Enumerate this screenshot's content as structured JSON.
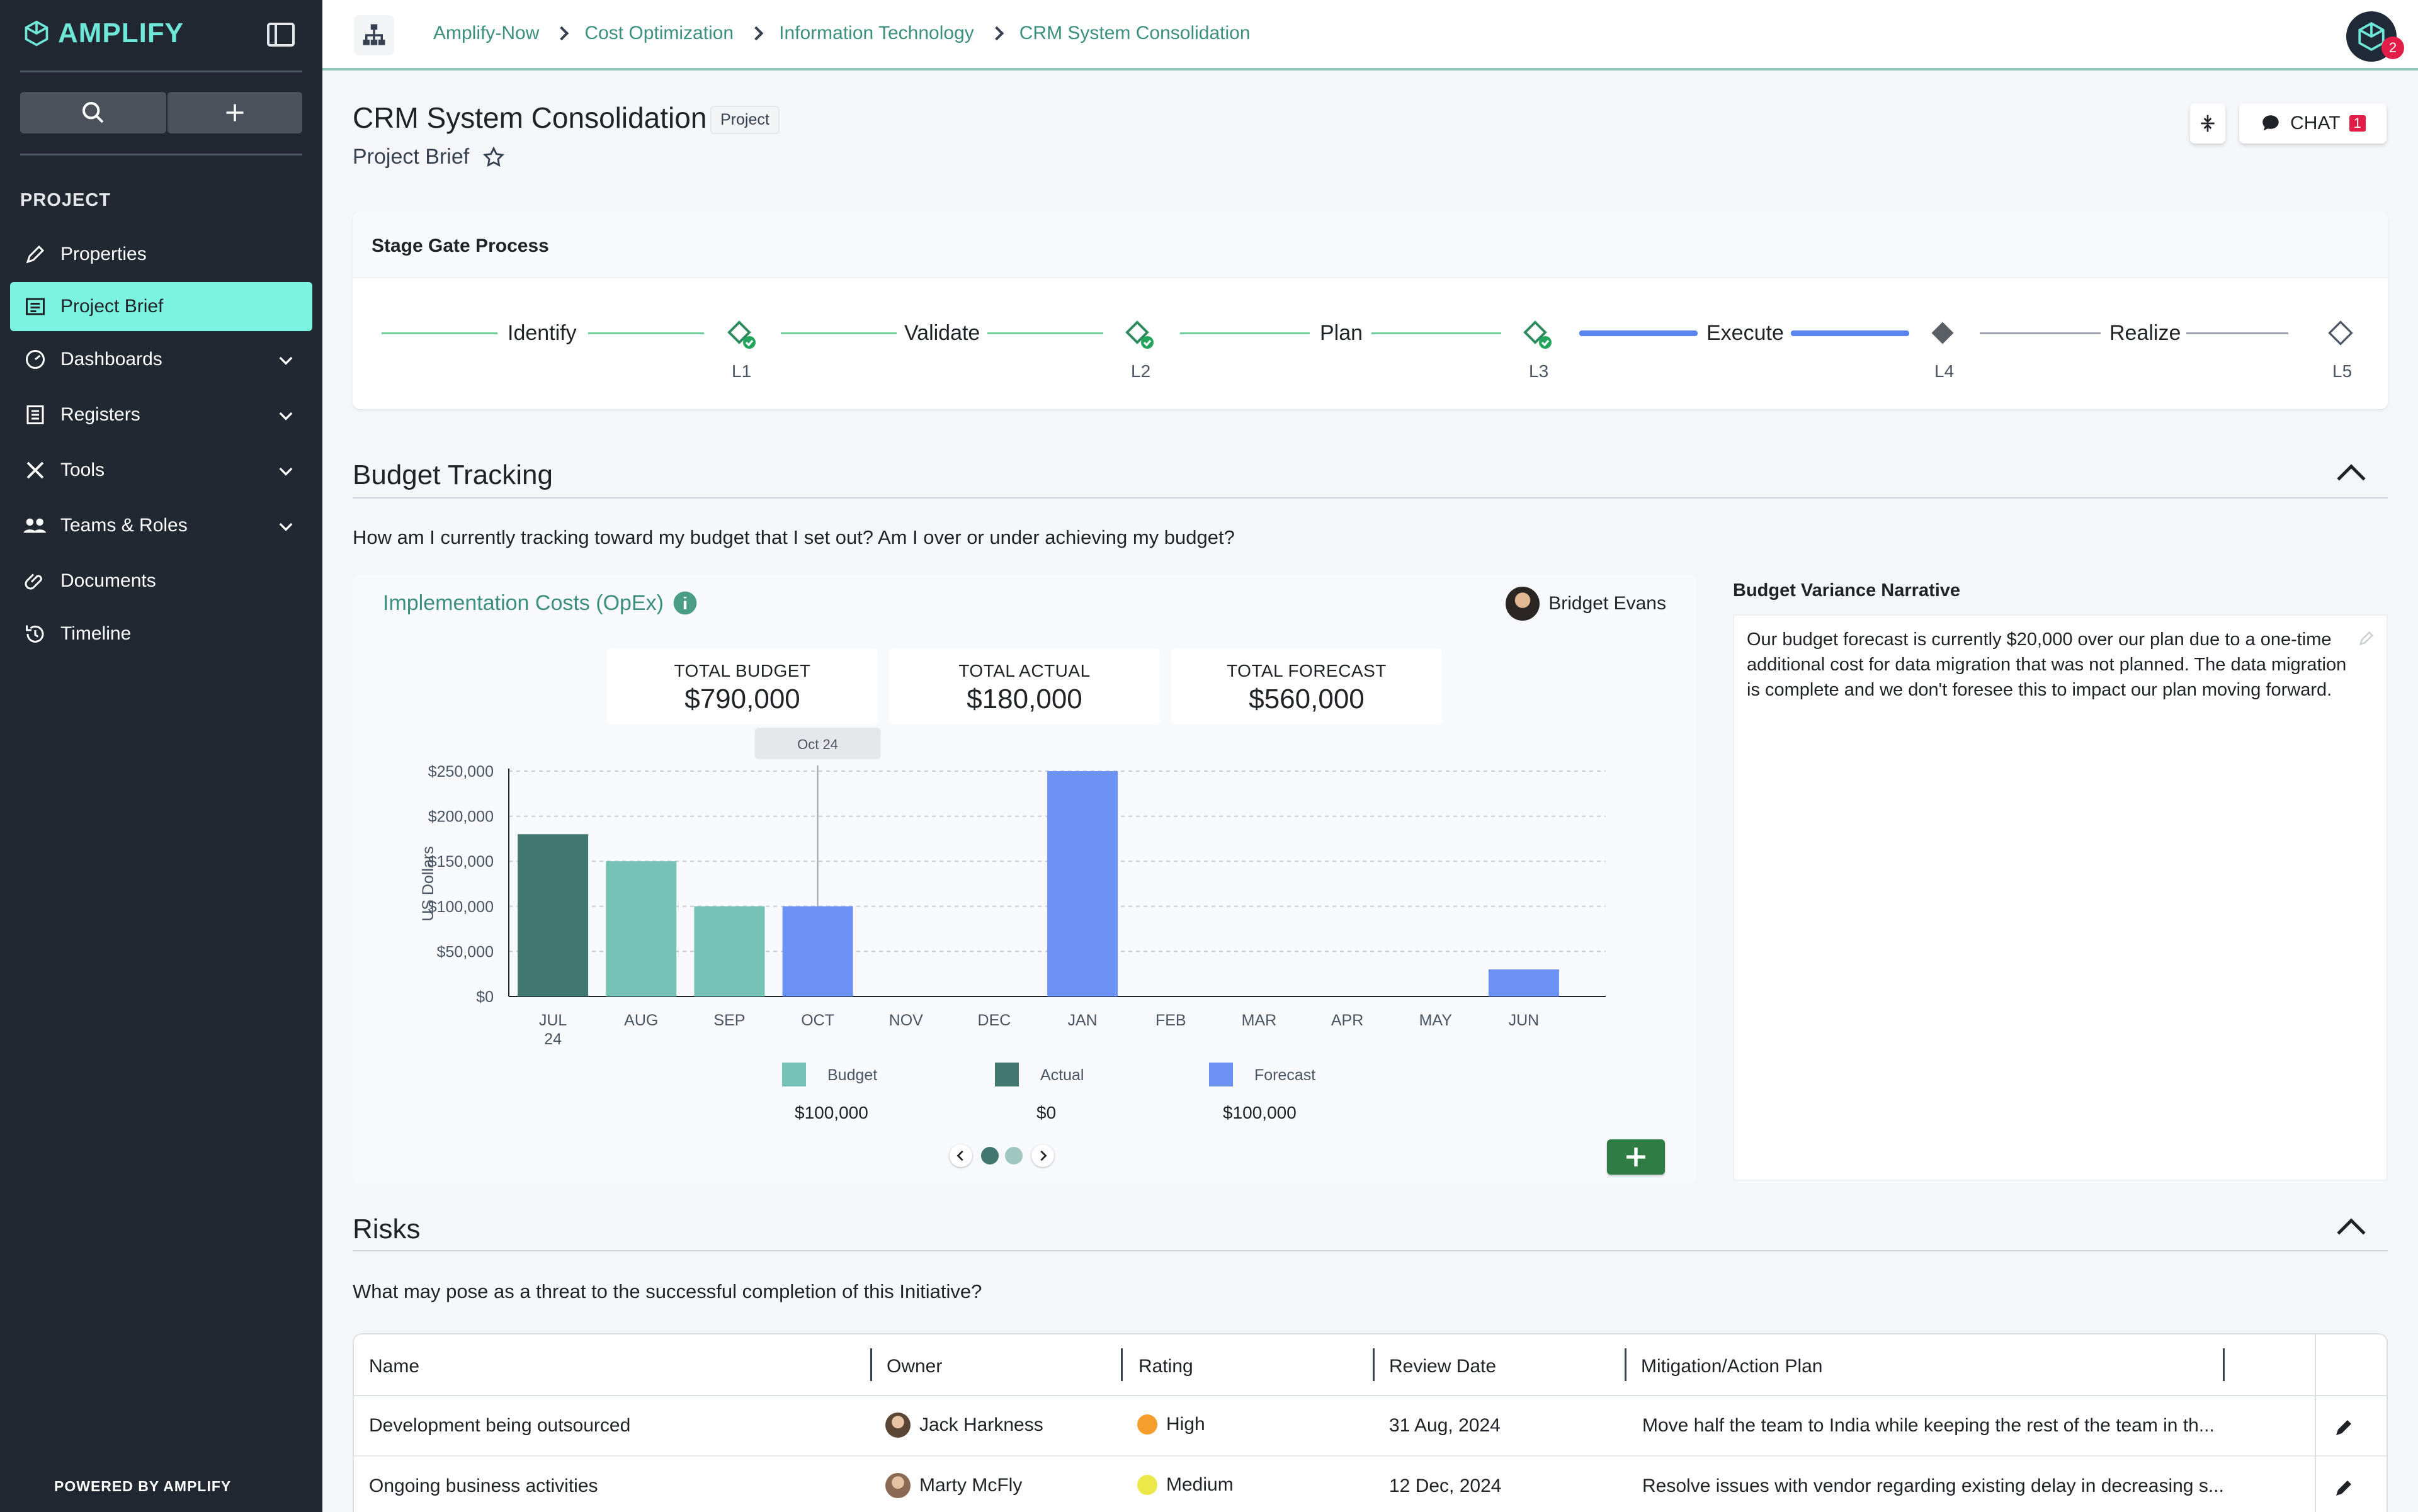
{
  "app": {
    "logo": "AMPLIFY",
    "powered_by": "POWERED BY AMPLIFY"
  },
  "sidebar": {
    "section": "PROJECT",
    "items": [
      {
        "label": "Properties",
        "icon": "pencil-icon"
      },
      {
        "label": "Project Brief",
        "icon": "brief-icon",
        "active": true
      },
      {
        "label": "Dashboards",
        "icon": "gauge-icon",
        "expandable": true
      },
      {
        "label": "Registers",
        "icon": "register-icon",
        "expandable": true
      },
      {
        "label": "Tools",
        "icon": "tools-icon",
        "expandable": true
      },
      {
        "label": "Teams & Roles",
        "icon": "team-icon",
        "expandable": true
      },
      {
        "label": "Documents",
        "icon": "paperclip-icon"
      },
      {
        "label": "Timeline",
        "icon": "history-icon"
      }
    ]
  },
  "breadcrumb": [
    "Amplify-Now",
    "Cost Optimization",
    "Information Technology",
    "CRM System Consolidation"
  ],
  "notifications": {
    "count": "2"
  },
  "page": {
    "title": "CRM System Consolidation",
    "tag": "Project",
    "subtitle": "Project Brief"
  },
  "chat": {
    "label": "CHAT",
    "count": "1"
  },
  "stage_gate": {
    "title": "Stage Gate Process",
    "stages": [
      {
        "name": "Identify",
        "level": "L1",
        "status": "complete"
      },
      {
        "name": "Validate",
        "level": "L2",
        "status": "complete"
      },
      {
        "name": "Plan",
        "level": "L3",
        "status": "complete"
      },
      {
        "name": "Execute",
        "level": "L4",
        "status": "current"
      },
      {
        "name": "Realize",
        "level": "L5",
        "status": "pending"
      }
    ]
  },
  "budget": {
    "title": "Budget Tracking",
    "question": "How am I currently tracking toward my budget that I set out? Am I over or under achieving my budget?",
    "card_title": "Implementation Costs (OpEx)",
    "owner": "Bridget Evans",
    "kpis": [
      {
        "label": "TOTAL BUDGET",
        "value": "$790,000"
      },
      {
        "label": "TOTAL ACTUAL",
        "value": "$180,000"
      },
      {
        "label": "TOTAL FORECAST",
        "value": "$560,000"
      }
    ],
    "narrative_title": "Budget Variance Narrative",
    "narrative": "Our budget forecast is currently $20,000 over our plan due to a one-time additional cost for data migration that was not planned. The data migration is complete and we don't foresee this to impact our plan moving forward.",
    "legend_values": [
      "$100,000",
      "$0",
      "$100,000"
    ]
  },
  "chart_data": {
    "type": "bar",
    "ylabel": "US Dollars",
    "ylim": [
      0,
      250000
    ],
    "yticks": [
      "$0",
      "$50,000",
      "$100,000",
      "$150,000",
      "$200,000",
      "$250,000"
    ],
    "categories": [
      "JUL",
      "AUG",
      "SEP",
      "OCT",
      "NOV",
      "DEC",
      "JAN",
      "FEB",
      "MAR",
      "APR",
      "MAY",
      "JUN"
    ],
    "year_label": "24",
    "tooltip": {
      "label": "Oct 24",
      "category": "OCT"
    },
    "series_names": [
      "Budget",
      "Actual",
      "Forecast"
    ],
    "colors": {
      "Budget": "#76c2b6",
      "Actual": "#40776f",
      "Forecast": "#6d92f6"
    },
    "bars": [
      {
        "category": "JUL",
        "series": "Actual",
        "value": 180000
      },
      {
        "category": "AUG",
        "series": "Budget",
        "value": 150000
      },
      {
        "category": "SEP",
        "series": "Budget",
        "value": 100000
      },
      {
        "category": "OCT",
        "series": "Forecast",
        "value": 100000
      },
      {
        "category": "JAN",
        "series": "Forecast",
        "value": 250000
      },
      {
        "category": "JUN",
        "series": "Forecast",
        "value": 30000
      }
    ],
    "grid": true
  },
  "risks": {
    "title": "Risks",
    "question": "What may pose as a threat to the successful completion of this Initiative?",
    "columns": [
      "Name",
      "Owner",
      "Rating",
      "Review Date",
      "Mitigation/Action Plan"
    ],
    "rows": [
      {
        "name": "Development being outsourced",
        "owner": "Jack Harkness",
        "rating": "High",
        "rating_color": "#f59e2c",
        "date": "31 Aug, 2024",
        "plan": "Move half the team to India while keeping the rest of the team in th..."
      },
      {
        "name": "Ongoing business activities",
        "owner": "Marty McFly",
        "rating": "Medium",
        "rating_color": "#ede84a",
        "date": "12 Dec, 2024",
        "plan": "Resolve issues with vendor regarding existing delay in decreasing s..."
      }
    ]
  }
}
